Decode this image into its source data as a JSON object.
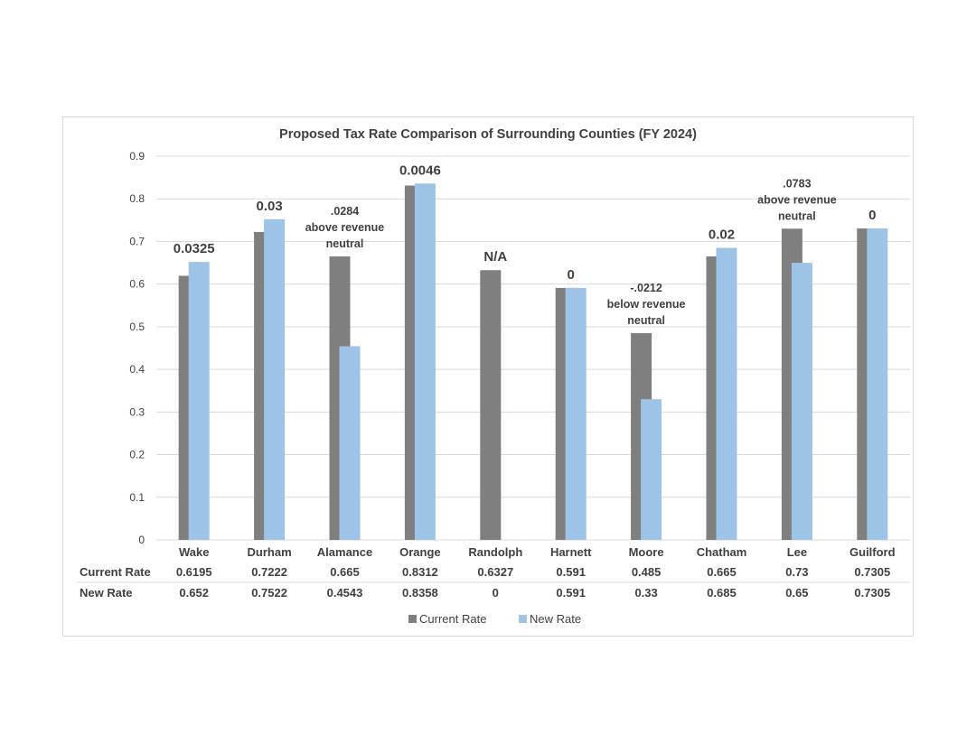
{
  "chart_data": {
    "type": "bar",
    "title": "Proposed Tax Rate Comparison of Surrounding Counties (FY 2024)",
    "categories": [
      "Wake",
      "Durham",
      "Alamance",
      "Orange",
      "Randolph",
      "Harnett",
      "Moore",
      "Chatham",
      "Lee",
      "Guilford"
    ],
    "series": [
      {
        "name": "Current Rate",
        "color": "#7f7f7f",
        "values": [
          0.6195,
          0.7222,
          0.665,
          0.8312,
          0.6327,
          0.591,
          0.485,
          0.665,
          0.73,
          0.7305
        ],
        "labels": [
          "0.6195",
          "0.7222",
          "0.665",
          "0.8312",
          "0.6327",
          "0.591",
          "0.485",
          "0.665",
          "0.73",
          "0.7305"
        ]
      },
      {
        "name": "New Rate",
        "color": "#9dc3e6",
        "values": [
          0.652,
          0.7522,
          0.4543,
          0.8358,
          0,
          0.591,
          0.33,
          0.685,
          0.65,
          0.7305
        ],
        "labels": [
          "0.652",
          "0.7522",
          "0.4543",
          "0.8358",
          "0",
          "0.591",
          "0.33",
          "0.685",
          "0.65",
          "0.7305"
        ]
      }
    ],
    "annotations": [
      {
        "category": "Wake",
        "lines": [
          "0.0325"
        ],
        "bold": true
      },
      {
        "category": "Durham",
        "lines": [
          "0.03"
        ],
        "bold": true
      },
      {
        "category": "Alamance",
        "lines": [
          ".0284",
          "above revenue",
          "neutral"
        ],
        "bold": false
      },
      {
        "category": "Orange",
        "lines": [
          "0.0046"
        ],
        "bold": true
      },
      {
        "category": "Randolph",
        "lines": [
          "N/A"
        ],
        "bold": true
      },
      {
        "category": "Harnett",
        "lines": [
          "0"
        ],
        "bold": true
      },
      {
        "category": "Moore",
        "lines": [
          "-.0212",
          "below revenue",
          "neutral"
        ],
        "bold": false
      },
      {
        "category": "Chatham",
        "lines": [
          "0.02"
        ],
        "bold": true
      },
      {
        "category": "Lee",
        "lines": [
          ".0783",
          "above revenue",
          "neutral"
        ],
        "bold": false
      },
      {
        "category": "Guilford",
        "lines": [
          "0"
        ],
        "bold": true
      }
    ],
    "yticks": [
      "0",
      "0.1",
      "0.2",
      "0.3",
      "0.4",
      "0.5",
      "0.6",
      "0.7",
      "0.8",
      "0.9"
    ],
    "ylim": [
      0,
      0.9
    ],
    "grid": true,
    "legend": "bottom",
    "data_table": true,
    "xlabel": "",
    "ylabel": ""
  }
}
